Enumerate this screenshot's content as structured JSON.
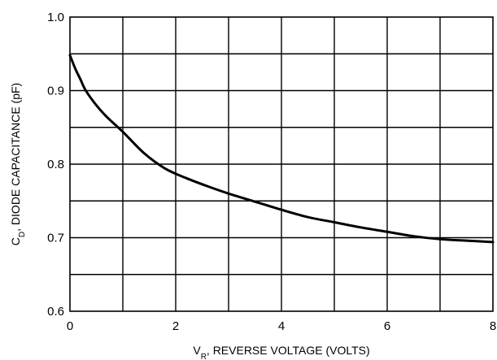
{
  "chart_data": {
    "type": "line",
    "title": "",
    "xlabel": {
      "main": "V",
      "sub": "R",
      "rest": ", REVERSE VOLTAGE (VOLTS)"
    },
    "ylabel": {
      "main": "C",
      "sub": "D",
      "rest": ", DIODE CAPACITANCE (pF)"
    },
    "xlim": [
      0,
      8
    ],
    "ylim": [
      0.6,
      1.0
    ],
    "x_ticks": [
      0,
      2,
      4,
      6,
      8
    ],
    "x_tick_labels": [
      "0",
      "2",
      "4",
      "6",
      "8"
    ],
    "y_ticks": [
      0.6,
      0.7,
      0.8,
      0.9,
      1.0
    ],
    "y_tick_labels": [
      "0.6",
      "0.7",
      "0.8",
      "0.9",
      "1.0"
    ],
    "grid": true,
    "grid_divisions": {
      "x": 8,
      "y": 8
    },
    "line_color": "#000000",
    "series": [
      {
        "x": [
          0,
          0.1,
          0.2,
          0.3,
          0.5,
          0.7,
          1.0,
          1.4,
          1.8,
          2.2,
          2.6,
          3.0,
          3.5,
          4.0,
          4.5,
          5.0,
          5.5,
          6.0,
          6.5,
          7.0,
          7.5,
          8.0
        ],
        "y": [
          0.948,
          0.93,
          0.915,
          0.9,
          0.88,
          0.864,
          0.844,
          0.815,
          0.794,
          0.781,
          0.77,
          0.76,
          0.749,
          0.738,
          0.728,
          0.721,
          0.714,
          0.708,
          0.702,
          0.698,
          0.696,
          0.694
        ]
      }
    ]
  }
}
